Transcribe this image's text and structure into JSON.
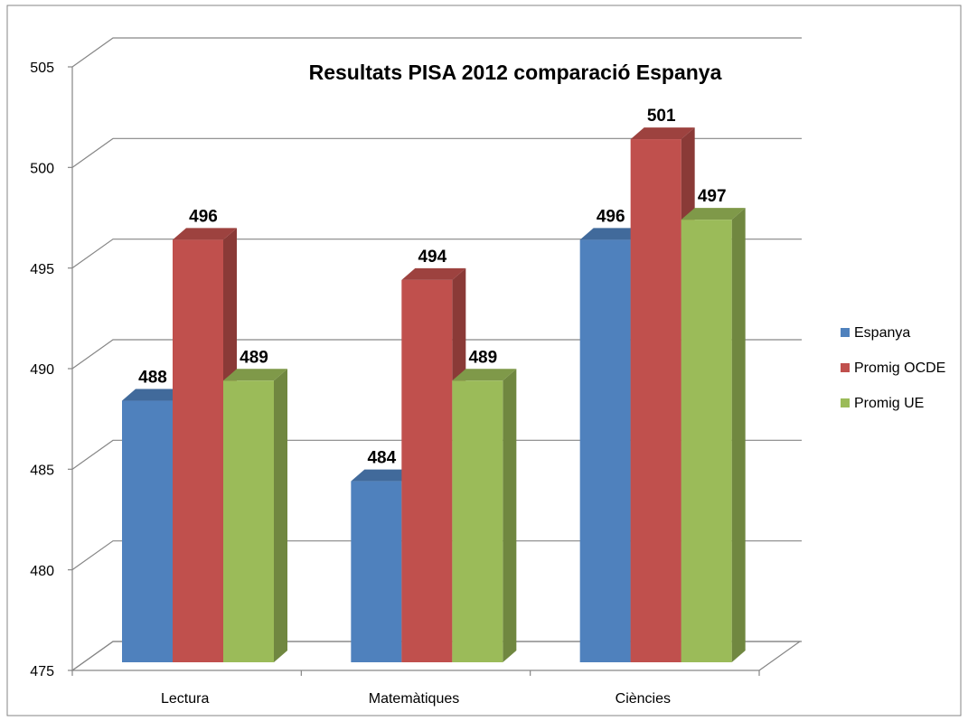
{
  "chart_data": {
    "type": "bar3d",
    "title": "Resultats PISA 2012 comparació Espanya",
    "categories": [
      "Lectura",
      "Matemàtiques",
      "Ciències"
    ],
    "series": [
      {
        "name": "Espanya",
        "color": "#4f81bd",
        "values": [
          488,
          484,
          496
        ]
      },
      {
        "name": "Promig OCDE",
        "color": "#c0504d",
        "values": [
          496,
          494,
          501
        ]
      },
      {
        "name": "Promig UE",
        "color": "#9bbb59",
        "values": [
          489,
          489,
          497
        ]
      }
    ],
    "ylim": [
      475,
      505
    ],
    "yticks": [
      475,
      480,
      485,
      490,
      495,
      500,
      505
    ],
    "grid": true,
    "legend": "right"
  }
}
